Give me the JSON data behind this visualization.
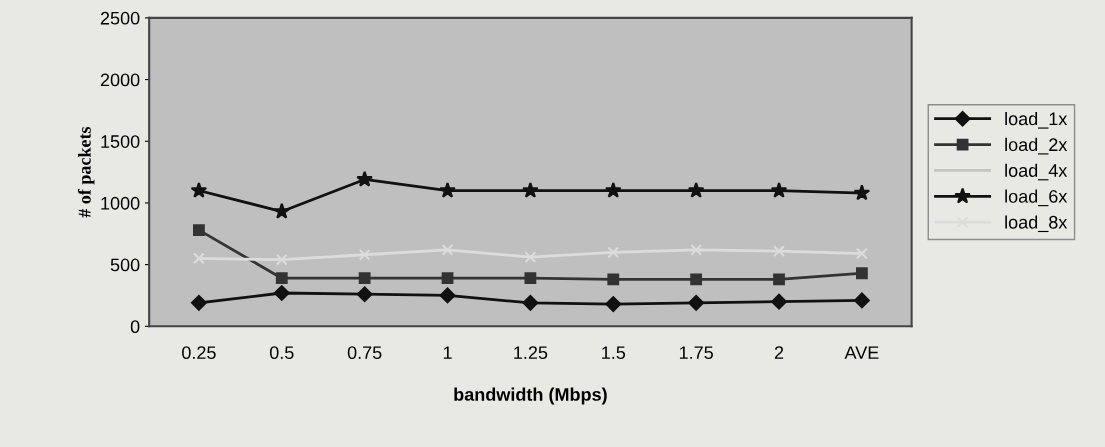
{
  "chart_data": {
    "type": "line",
    "xlabel": "bandwidth (Mbps)",
    "ylabel": "# of packets",
    "categories": [
      "0.25",
      "0.5",
      "0.75",
      "1",
      "1.25",
      "1.5",
      "1.75",
      "2",
      "AVE"
    ],
    "ylim": [
      0,
      2500
    ],
    "yticks": [
      0,
      500,
      1000,
      1500,
      2000,
      2500
    ],
    "grid": false,
    "legend": "right",
    "series": [
      {
        "name": "load_1x",
        "color": "#111111",
        "marker": "diamond",
        "values": [
          190,
          270,
          260,
          250,
          190,
          180,
          190,
          200,
          210
        ]
      },
      {
        "name": "load_2x",
        "color": "#333333",
        "marker": "square",
        "values": [
          780,
          390,
          390,
          390,
          390,
          380,
          380,
          380,
          430
        ]
      },
      {
        "name": "load_4x",
        "color": "#c4c4c4",
        "marker": "none",
        "values": [
          null,
          null,
          null,
          null,
          null,
          null,
          null,
          null,
          null
        ]
      },
      {
        "name": "load_6x",
        "color": "#111111",
        "marker": "star",
        "values": [
          1100,
          930,
          1190,
          1100,
          1100,
          1100,
          1100,
          1100,
          1080
        ]
      },
      {
        "name": "load_8x",
        "color": "#dcdcdc",
        "marker": "cross",
        "values": [
          550,
          540,
          580,
          620,
          560,
          600,
          620,
          610,
          590
        ]
      }
    ]
  }
}
